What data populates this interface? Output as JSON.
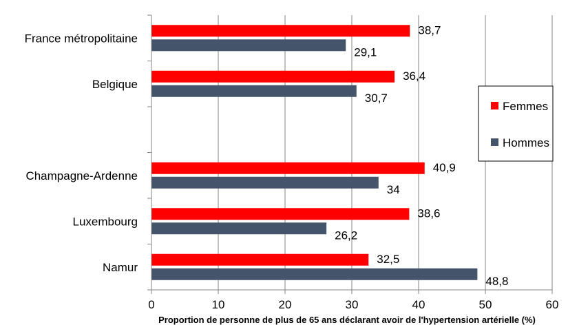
{
  "chart_data": {
    "type": "bar",
    "orientation": "horizontal",
    "categories": [
      "France métropolitaine",
      "Belgique",
      "",
      "Champagne-Ardenne",
      "Luxembourg",
      "Namur"
    ],
    "series": [
      {
        "name": "Femmes",
        "color": "#ff0000",
        "values": [
          38.7,
          36.4,
          null,
          40.9,
          38.6,
          32.5
        ],
        "labels": [
          "38,7",
          "36,4",
          "",
          "40,9",
          "38,6",
          "32,5"
        ]
      },
      {
        "name": "Hommes",
        "color": "#44546a",
        "values": [
          29.1,
          30.7,
          null,
          34,
          26.2,
          48.8
        ],
        "labels": [
          "29,1",
          "30,7",
          "",
          "34",
          "26,2",
          "48,8"
        ]
      }
    ],
    "title": "",
    "xlabel": "Proportion de personne de plus de 65 ans déclarant avoir de l'hypertension artérielle (%)",
    "ylabel": "",
    "xlim": [
      0,
      60
    ],
    "xticks": [
      0,
      10,
      20,
      30,
      40,
      50,
      60
    ],
    "grid": true,
    "legend_position": "right"
  }
}
